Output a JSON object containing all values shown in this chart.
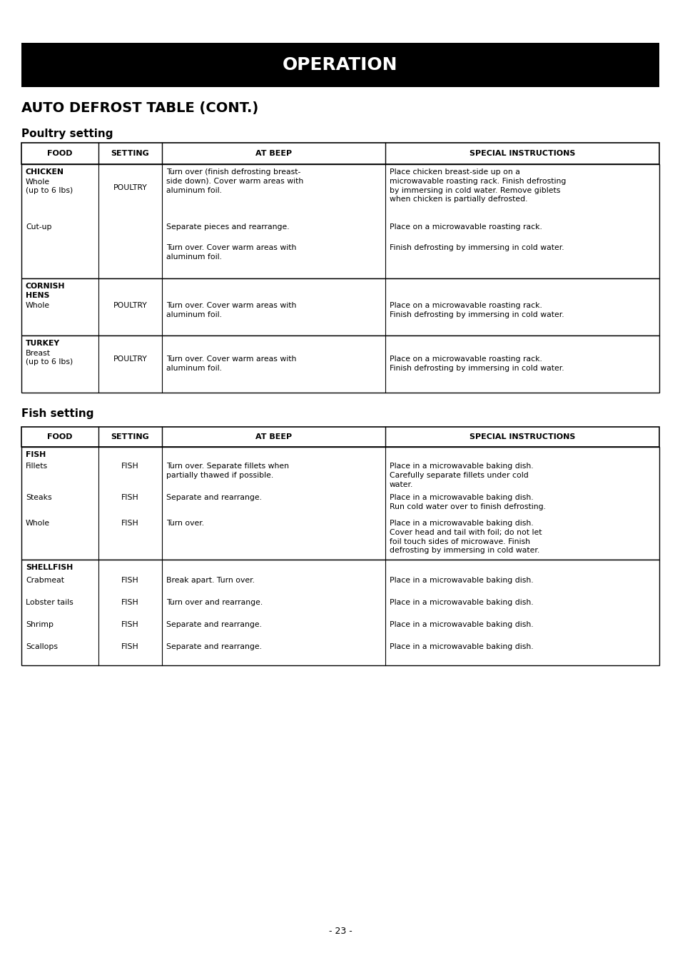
{
  "title_banner": "OPERATION",
  "section_title": "AUTO DEFROST TABLE (CONT.)",
  "subsection1": "Poultry setting",
  "subsection2": "Fish setting",
  "page_number": "- 23 -",
  "bg_color": "#ffffff",
  "banner_bg": "#000000",
  "banner_text_color": "#ffffff"
}
